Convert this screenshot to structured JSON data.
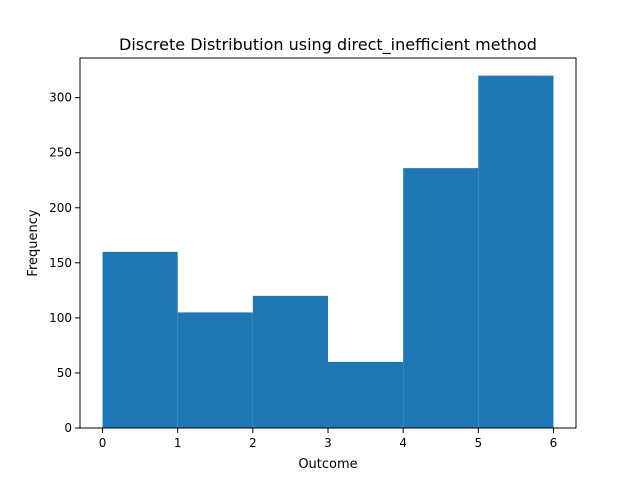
{
  "chart_data": {
    "type": "bar",
    "title": "Discrete Distribution using direct_inefficient method",
    "xlabel": "Outcome",
    "ylabel": "Frequency",
    "bins": [
      {
        "start": 0,
        "end": 1,
        "value": 160
      },
      {
        "start": 1,
        "end": 2,
        "value": 105
      },
      {
        "start": 2,
        "end": 3,
        "value": 120
      },
      {
        "start": 3,
        "end": 4,
        "value": 60
      },
      {
        "start": 4,
        "end": 5,
        "value": 236
      },
      {
        "start": 5,
        "end": 6,
        "value": 320
      }
    ],
    "xlim": [
      -0.3,
      6.3
    ],
    "ylim": [
      0,
      336
    ],
    "xticks": [
      0,
      1,
      2,
      3,
      4,
      5,
      6
    ],
    "yticks": [
      0,
      50,
      100,
      150,
      200,
      250,
      300
    ],
    "bar_color": "#1f77b4",
    "grid": false,
    "legend": "none"
  }
}
